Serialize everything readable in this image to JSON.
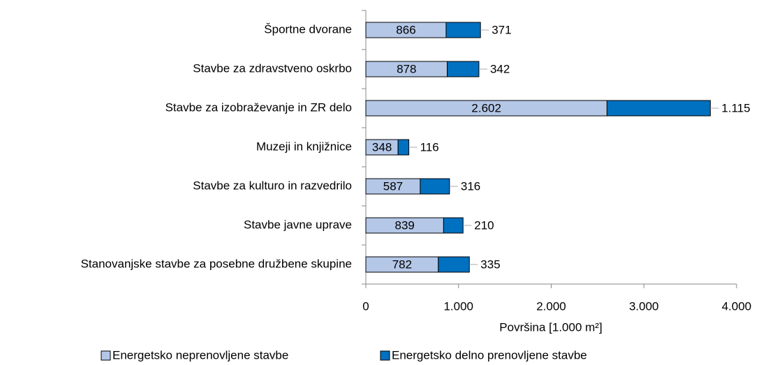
{
  "chart_data": {
    "type": "stacked_barh",
    "categories": [
      "Športne dvorane",
      "Stavbe za zdravstveno oskrbo",
      "Stavbe za izobraževanje in ZR delo",
      "Muzeji in knjižnice",
      "Stavbe za kulturo in razvedrilo",
      "Stavbe javne uprave",
      "Stanovanjske stavbe za posebne družbene skupine"
    ],
    "series": [
      {
        "name": "Energetsko neprenovljene stavbe",
        "color": "#b4c7e7",
        "values": [
          866,
          878,
          2602,
          348,
          587,
          839,
          782
        ],
        "value_labels": [
          "866",
          "878",
          "2.602",
          "348",
          "587",
          "839",
          "782"
        ]
      },
      {
        "name": "Energetsko delno prenovljene stavbe",
        "color": "#0070c0",
        "values": [
          371,
          342,
          1115,
          116,
          316,
          210,
          335
        ],
        "value_labels": [
          "371",
          "342",
          "1.115",
          "116",
          "316",
          "210",
          "335"
        ]
      }
    ],
    "xlabel": "Površina [1.000 m²]",
    "xlim": [
      0,
      4000
    ],
    "xticks": [
      0,
      {
        "value": 1000,
        "label": "1.000"
      },
      {
        "value": 2000,
        "label": "2.000"
      },
      {
        "value": 3000,
        "label": "3.000"
      },
      {
        "value": 4000,
        "label": "4.000"
      }
    ],
    "legend": "bottom"
  }
}
